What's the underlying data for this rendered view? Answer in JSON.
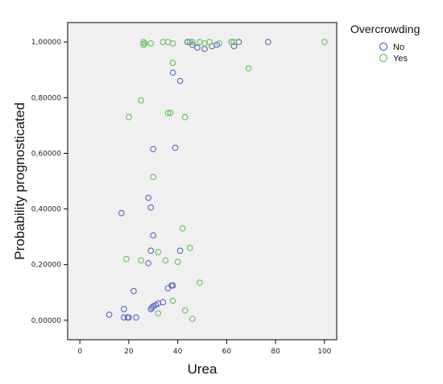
{
  "chart_data": {
    "type": "scatter",
    "xlabel": "Urea",
    "ylabel": "Probability prognosticated",
    "xlim": [
      -5,
      105
    ],
    "ylim": [
      -0.07,
      1.07
    ],
    "x_ticks": [
      0,
      20,
      40,
      60,
      80,
      100
    ],
    "x_tick_labels": [
      "0",
      "20",
      "40",
      "60",
      "80",
      "100"
    ],
    "y_ticks": [
      0,
      0.2,
      0.4,
      0.6,
      0.8,
      1.0
    ],
    "y_tick_labels": [
      "0,00000",
      "0,20000",
      "0,40000",
      "0,60000",
      "0,80000",
      "1,00000"
    ],
    "grid": false,
    "legend": {
      "title": "Overcrowding",
      "position": "top-right"
    },
    "series": [
      {
        "name": "No",
        "color": "#5a67b8",
        "marker": "circle-open",
        "points": [
          [
            12,
            0.02
          ],
          [
            18,
            0.04
          ],
          [
            18,
            0.01
          ],
          [
            19.5,
            0.01
          ],
          [
            20,
            0.01
          ],
          [
            23,
            0.01
          ],
          [
            22,
            0.105
          ],
          [
            29,
            0.04
          ],
          [
            29.5,
            0.045
          ],
          [
            30,
            0.05
          ],
          [
            31,
            0.055
          ],
          [
            32,
            0.06
          ],
          [
            34,
            0.065
          ],
          [
            28,
            0.205
          ],
          [
            29,
            0.25
          ],
          [
            30,
            0.305
          ],
          [
            17,
            0.385
          ],
          [
            28,
            0.44
          ],
          [
            29,
            0.405
          ],
          [
            30,
            0.615
          ],
          [
            39,
            0.62
          ],
          [
            36,
            0.115
          ],
          [
            37.5,
            0.125
          ],
          [
            38,
            0.125
          ],
          [
            41,
            0.25
          ],
          [
            38,
            0.89
          ],
          [
            41,
            0.86
          ],
          [
            44,
            1.0
          ],
          [
            45,
            1.0
          ],
          [
            46,
            0.99
          ],
          [
            48,
            0.98
          ],
          [
            51,
            0.975
          ],
          [
            54,
            0.985
          ],
          [
            56,
            0.99
          ],
          [
            62,
            1.0
          ],
          [
            63,
            0.985
          ],
          [
            65,
            1.0
          ],
          [
            77,
            1.0
          ]
        ]
      },
      {
        "name": "Yes",
        "color": "#63c15a",
        "marker": "circle-open",
        "points": [
          [
            26,
            1.0
          ],
          [
            26.5,
            0.995
          ],
          [
            26,
            0.99
          ],
          [
            29,
            0.995
          ],
          [
            34,
            1.0
          ],
          [
            36,
            1.0
          ],
          [
            38,
            0.995
          ],
          [
            45,
            1.0
          ],
          [
            46,
            1.0
          ],
          [
            49,
            1.0
          ],
          [
            51,
            0.995
          ],
          [
            53,
            1.0
          ],
          [
            57,
            0.995
          ],
          [
            62,
            1.0
          ],
          [
            63,
            1.0
          ],
          [
            100,
            1.0
          ],
          [
            38,
            0.925
          ],
          [
            69,
            0.905
          ],
          [
            25,
            0.79
          ],
          [
            20,
            0.73
          ],
          [
            36,
            0.745
          ],
          [
            37,
            0.745
          ],
          [
            43,
            0.73
          ],
          [
            30,
            0.515
          ],
          [
            42,
            0.33
          ],
          [
            45,
            0.26
          ],
          [
            32,
            0.245
          ],
          [
            19,
            0.22
          ],
          [
            25,
            0.215
          ],
          [
            35,
            0.215
          ],
          [
            40,
            0.21
          ],
          [
            49,
            0.135
          ],
          [
            38,
            0.07
          ],
          [
            43,
            0.035
          ],
          [
            32,
            0.025
          ],
          [
            46,
            0.005
          ]
        ]
      }
    ]
  }
}
